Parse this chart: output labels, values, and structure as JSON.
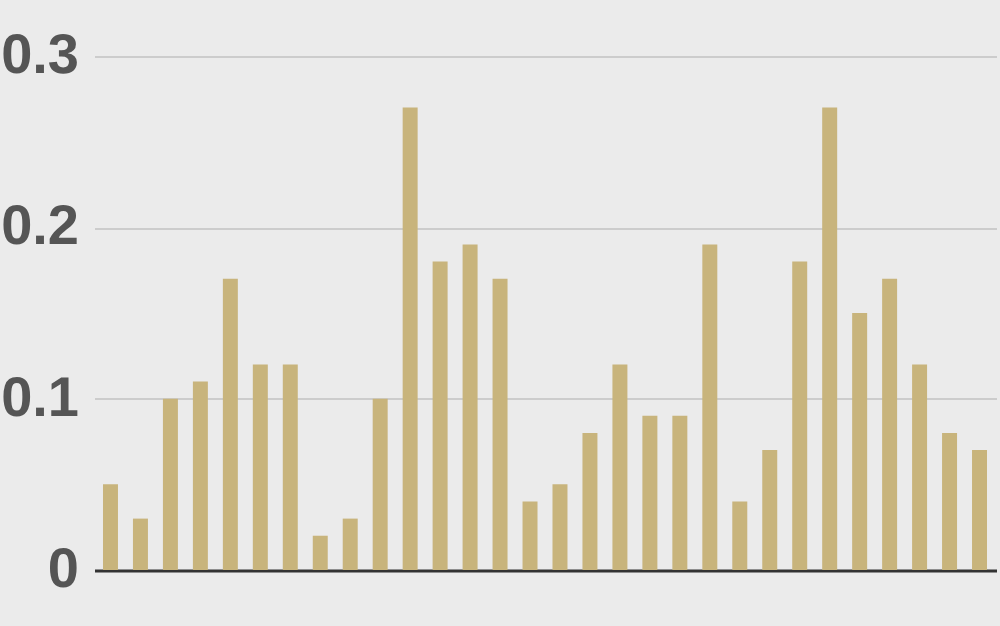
{
  "chart_data": {
    "type": "bar",
    "categories": [
      null,
      null,
      null,
      null,
      null,
      null,
      null,
      null,
      null,
      null,
      null,
      null,
      null,
      null,
      null,
      null,
      null,
      null,
      null,
      null,
      null,
      null,
      null,
      null,
      null,
      null,
      null,
      null,
      null,
      null
    ],
    "values": [
      0.05,
      0.03,
      0.1,
      0.11,
      0.17,
      0.12,
      0.12,
      0.02,
      0.03,
      0.1,
      0.27,
      0.18,
      0.19,
      0.17,
      0.04,
      0.05,
      0.08,
      0.12,
      0.09,
      0.09,
      0.19,
      0.04,
      0.07,
      0.18,
      0.27,
      0.15,
      0.17,
      0.12,
      0.08,
      0.07
    ],
    "color": "#c8b47c",
    "ylim": [
      0,
      0.3
    ],
    "yticks": [
      0,
      0.1,
      0.2,
      0.3
    ],
    "grid": "y",
    "tick_labels": "y"
  }
}
